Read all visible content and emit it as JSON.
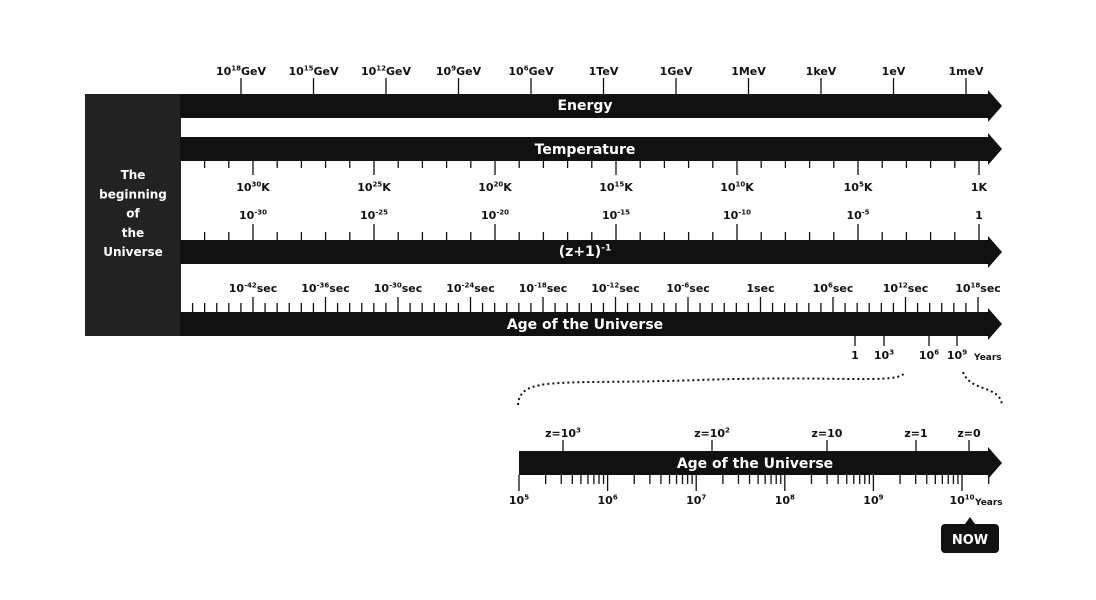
{
  "origin_label": [
    "The",
    "beginning",
    "of",
    "the",
    "Universe"
  ],
  "energy": {
    "title": "Energy",
    "labels": [
      {
        "base": "10",
        "sup": "18",
        "unit": "GeV"
      },
      {
        "base": "10",
        "sup": "15",
        "unit": "GeV"
      },
      {
        "base": "10",
        "sup": "12",
        "unit": "GeV"
      },
      {
        "base": "10",
        "sup": "9",
        "unit": "GeV"
      },
      {
        "base": "10",
        "sup": "6",
        "unit": "GeV"
      },
      {
        "base": "1TeV"
      },
      {
        "base": "1GeV"
      },
      {
        "base": "1MeV"
      },
      {
        "base": "1keV"
      },
      {
        "base": "1eV"
      },
      {
        "base": "1meV"
      }
    ]
  },
  "temperature": {
    "title": "Temperature",
    "labels": [
      {
        "base": "10",
        "sup": "30",
        "unit": "K"
      },
      {
        "base": "10",
        "sup": "25",
        "unit": "K"
      },
      {
        "base": "10",
        "sup": "20",
        "unit": "K"
      },
      {
        "base": "10",
        "sup": "15",
        "unit": "K"
      },
      {
        "base": "10",
        "sup": "10",
        "unit": "K"
      },
      {
        "base": "10",
        "sup": "5",
        "unit": "K"
      },
      {
        "base": "1K"
      }
    ]
  },
  "scale_factor": {
    "title": {
      "base": "(z+1)",
      "sup": "-1"
    },
    "labels": [
      {
        "base": "10",
        "sup": "-30"
      },
      {
        "base": "10",
        "sup": "-25"
      },
      {
        "base": "10",
        "sup": "-20"
      },
      {
        "base": "10",
        "sup": "-15"
      },
      {
        "base": "10",
        "sup": "-10"
      },
      {
        "base": "10",
        "sup": "-5"
      },
      {
        "base": "1"
      }
    ]
  },
  "age": {
    "title": "Age of the Universe",
    "labels": [
      {
        "base": "10",
        "sup": "-42",
        "unit": "sec"
      },
      {
        "base": "10",
        "sup": "-36",
        "unit": "sec"
      },
      {
        "base": "10",
        "sup": "-30",
        "unit": "sec"
      },
      {
        "base": "10",
        "sup": "-24",
        "unit": "sec"
      },
      {
        "base": "10",
        "sup": "-18",
        "unit": "sec"
      },
      {
        "base": "10",
        "sup": "-12",
        "unit": "sec"
      },
      {
        "base": "10",
        "sup": "-6",
        "unit": "sec"
      },
      {
        "base": "1sec"
      },
      {
        "base": "10",
        "sup": "6",
        "unit": "sec"
      },
      {
        "base": "10",
        "sup": "12",
        "unit": "sec"
      },
      {
        "base": "10",
        "sup": "18",
        "unit": "sec"
      }
    ],
    "year_labels": [
      {
        "base": "1"
      },
      {
        "base": "10",
        "sup": "3"
      },
      {
        "base": "10",
        "sup": "6"
      },
      {
        "base": "10",
        "sup": "9"
      }
    ],
    "year_unit": "Years"
  },
  "zoom": {
    "title": "Age of the Universe",
    "redshift_labels": [
      {
        "base": "z=10",
        "sup": "3"
      },
      {
        "base": "z=10",
        "sup": "2"
      },
      {
        "base": "z=10"
      },
      {
        "base": "z=1"
      },
      {
        "base": "z=0"
      }
    ],
    "year_labels": [
      {
        "base": "10",
        "sup": "5"
      },
      {
        "base": "10",
        "sup": "6"
      },
      {
        "base": "10",
        "sup": "7"
      },
      {
        "base": "10",
        "sup": "8"
      },
      {
        "base": "10",
        "sup": "9"
      },
      {
        "base": "10",
        "sup": "10"
      }
    ],
    "year_unit": "Years",
    "now": "NOW"
  }
}
